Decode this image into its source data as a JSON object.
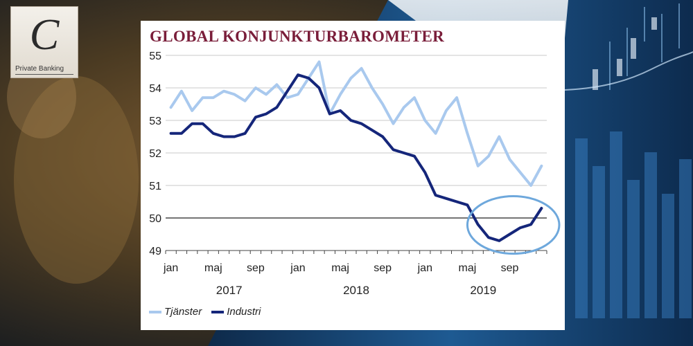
{
  "brand": {
    "logo_letter": "C",
    "caption": "Private Banking"
  },
  "colors": {
    "tjanster": "#a9c9ee",
    "industri": "#15267a",
    "title": "#7a1e3a",
    "highlight": "#6ea8dc"
  },
  "chart_data": {
    "type": "line",
    "title": "GLOBAL KONJUNKTURBAROMETER",
    "ylim": [
      49,
      55
    ],
    "y_ticks": [
      49,
      50,
      51,
      52,
      53,
      54,
      55
    ],
    "x_tick_labels": [
      {
        "month_index": 0,
        "label": "jan"
      },
      {
        "month_index": 4,
        "label": "maj"
      },
      {
        "month_index": 8,
        "label": "sep"
      },
      {
        "month_index": 12,
        "label": "jan"
      },
      {
        "month_index": 16,
        "label": "maj"
      },
      {
        "month_index": 20,
        "label": "sep"
      },
      {
        "month_index": 24,
        "label": "jan"
      },
      {
        "month_index": 28,
        "label": "maj"
      },
      {
        "month_index": 32,
        "label": "sep"
      }
    ],
    "year_labels": [
      {
        "center_month": 5.5,
        "label": "2017"
      },
      {
        "center_month": 17.5,
        "label": "2018"
      },
      {
        "center_month": 29.5,
        "label": "2019"
      }
    ],
    "reference_line": 50,
    "grid": "horizontal",
    "x_start": "2017-01",
    "series": [
      {
        "name": "Tjänster",
        "values": [
          53.4,
          53.9,
          53.3,
          53.7,
          53.7,
          53.9,
          53.8,
          53.6,
          54.0,
          53.8,
          54.1,
          53.7,
          53.8,
          54.3,
          54.8,
          53.2,
          53.8,
          54.3,
          54.6,
          54.0,
          53.5,
          52.9,
          53.4,
          53.7,
          53.0,
          52.6,
          53.3,
          53.7,
          52.6,
          51.6,
          51.9,
          52.5,
          51.8,
          51.4,
          51.0,
          51.6
        ]
      },
      {
        "name": "Industri",
        "values": [
          52.6,
          52.6,
          52.9,
          52.9,
          52.6,
          52.5,
          52.5,
          52.6,
          53.1,
          53.2,
          53.4,
          53.9,
          54.4,
          54.3,
          54.0,
          53.2,
          53.3,
          53.0,
          52.9,
          52.7,
          52.5,
          52.1,
          52.0,
          51.9,
          51.4,
          50.7,
          50.6,
          50.5,
          50.4,
          49.8,
          49.4,
          49.3,
          49.5,
          49.7,
          49.8,
          50.3
        ]
      }
    ],
    "annotation": {
      "shape": "ellipse",
      "around_months": [
        28,
        36
      ],
      "around_values": [
        49.2,
        50.5
      ]
    }
  }
}
